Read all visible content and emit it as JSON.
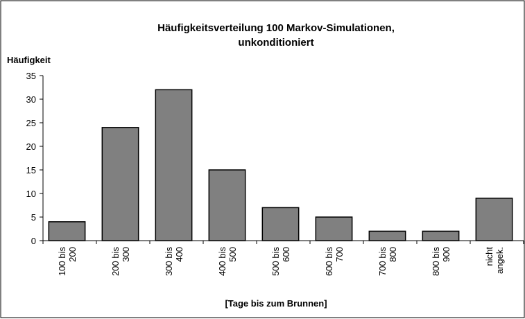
{
  "chart_data": {
    "type": "bar",
    "title": [
      "Häufigkeitsverteilung   100   Markov-Simulationen,",
      "unkonditioniert"
    ],
    "y_label": "Häufigkeit",
    "x_label": "[Tage  bis  zum  Brunnen]",
    "categories": [
      [
        "100  bis",
        "200"
      ],
      [
        "200  bis",
        "300"
      ],
      [
        "300  bis",
        "400"
      ],
      [
        "400  bis",
        "500"
      ],
      [
        "500  bis",
        "600"
      ],
      [
        "600  bis",
        "700"
      ],
      [
        "700  bis",
        "800"
      ],
      [
        "800  bis",
        "900"
      ],
      [
        "nicht",
        "angek."
      ]
    ],
    "values": [
      4,
      24,
      32,
      15,
      7,
      5,
      2,
      2,
      9
    ],
    "color": "#808080",
    "ylim": [
      0,
      35
    ],
    "yticks": [
      0,
      5,
      10,
      15,
      20,
      25,
      30,
      35
    ],
    "grid": false
  }
}
